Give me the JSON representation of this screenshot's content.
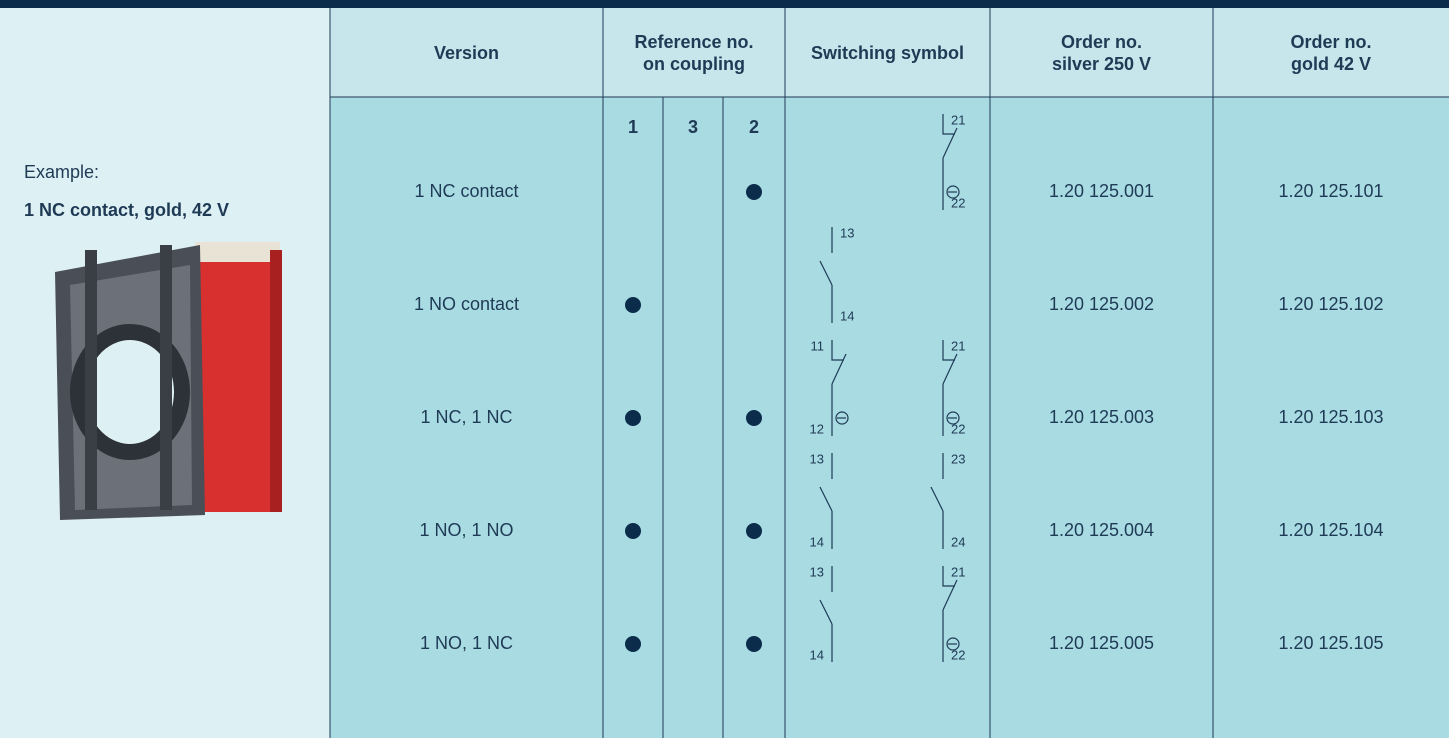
{
  "sidebar": {
    "label": "Example:",
    "caption": "1 NC contact, gold, 42 V"
  },
  "table": {
    "headers": [
      "Version",
      "Reference no.\non coupling",
      "Switching symbol",
      "Order no.\nsilver 250 V",
      "Order no.\ngold 42 V"
    ],
    "coupling_positions": [
      "1",
      "3",
      "2"
    ],
    "rows": [
      {
        "version": "1 NC contact",
        "coupling": [
          false,
          false,
          true
        ],
        "symbols": [
          {
            "kind": "NC",
            "position": "right",
            "top": "21",
            "bottom": "22"
          }
        ],
        "silver": "1.20 125.001",
        "gold": "1.20 125.101"
      },
      {
        "version": "1 NO contact",
        "coupling": [
          true,
          false,
          false
        ],
        "symbols": [
          {
            "kind": "NO",
            "position": "left",
            "top": "13",
            "bottom": "14"
          }
        ],
        "silver": "1.20 125.002",
        "gold": "1.20 125.102"
      },
      {
        "version": "1 NC, 1 NC",
        "coupling": [
          true,
          false,
          true
        ],
        "symbols": [
          {
            "kind": "NC",
            "position": "left",
            "top": "11",
            "bottom": "12"
          },
          {
            "kind": "NC",
            "position": "right",
            "top": "21",
            "bottom": "22"
          }
        ],
        "silver": "1.20 125.003",
        "gold": "1.20 125.103"
      },
      {
        "version": "1 NO, 1 NO",
        "coupling": [
          true,
          false,
          true
        ],
        "symbols": [
          {
            "kind": "NO",
            "position": "left",
            "top": "13",
            "bottom": "14"
          },
          {
            "kind": "NO",
            "position": "right",
            "top": "23",
            "bottom": "24"
          }
        ],
        "silver": "1.20 125.004",
        "gold": "1.20 125.104"
      },
      {
        "version": "1 NO, 1 NC",
        "coupling": [
          true,
          false,
          true
        ],
        "symbols": [
          {
            "kind": "NO",
            "position": "left",
            "top": "13",
            "bottom": "14"
          },
          {
            "kind": "NC",
            "position": "right",
            "top": "21",
            "bottom": "22"
          }
        ],
        "silver": "1.20 125.005",
        "gold": "1.20 125.105"
      }
    ]
  }
}
